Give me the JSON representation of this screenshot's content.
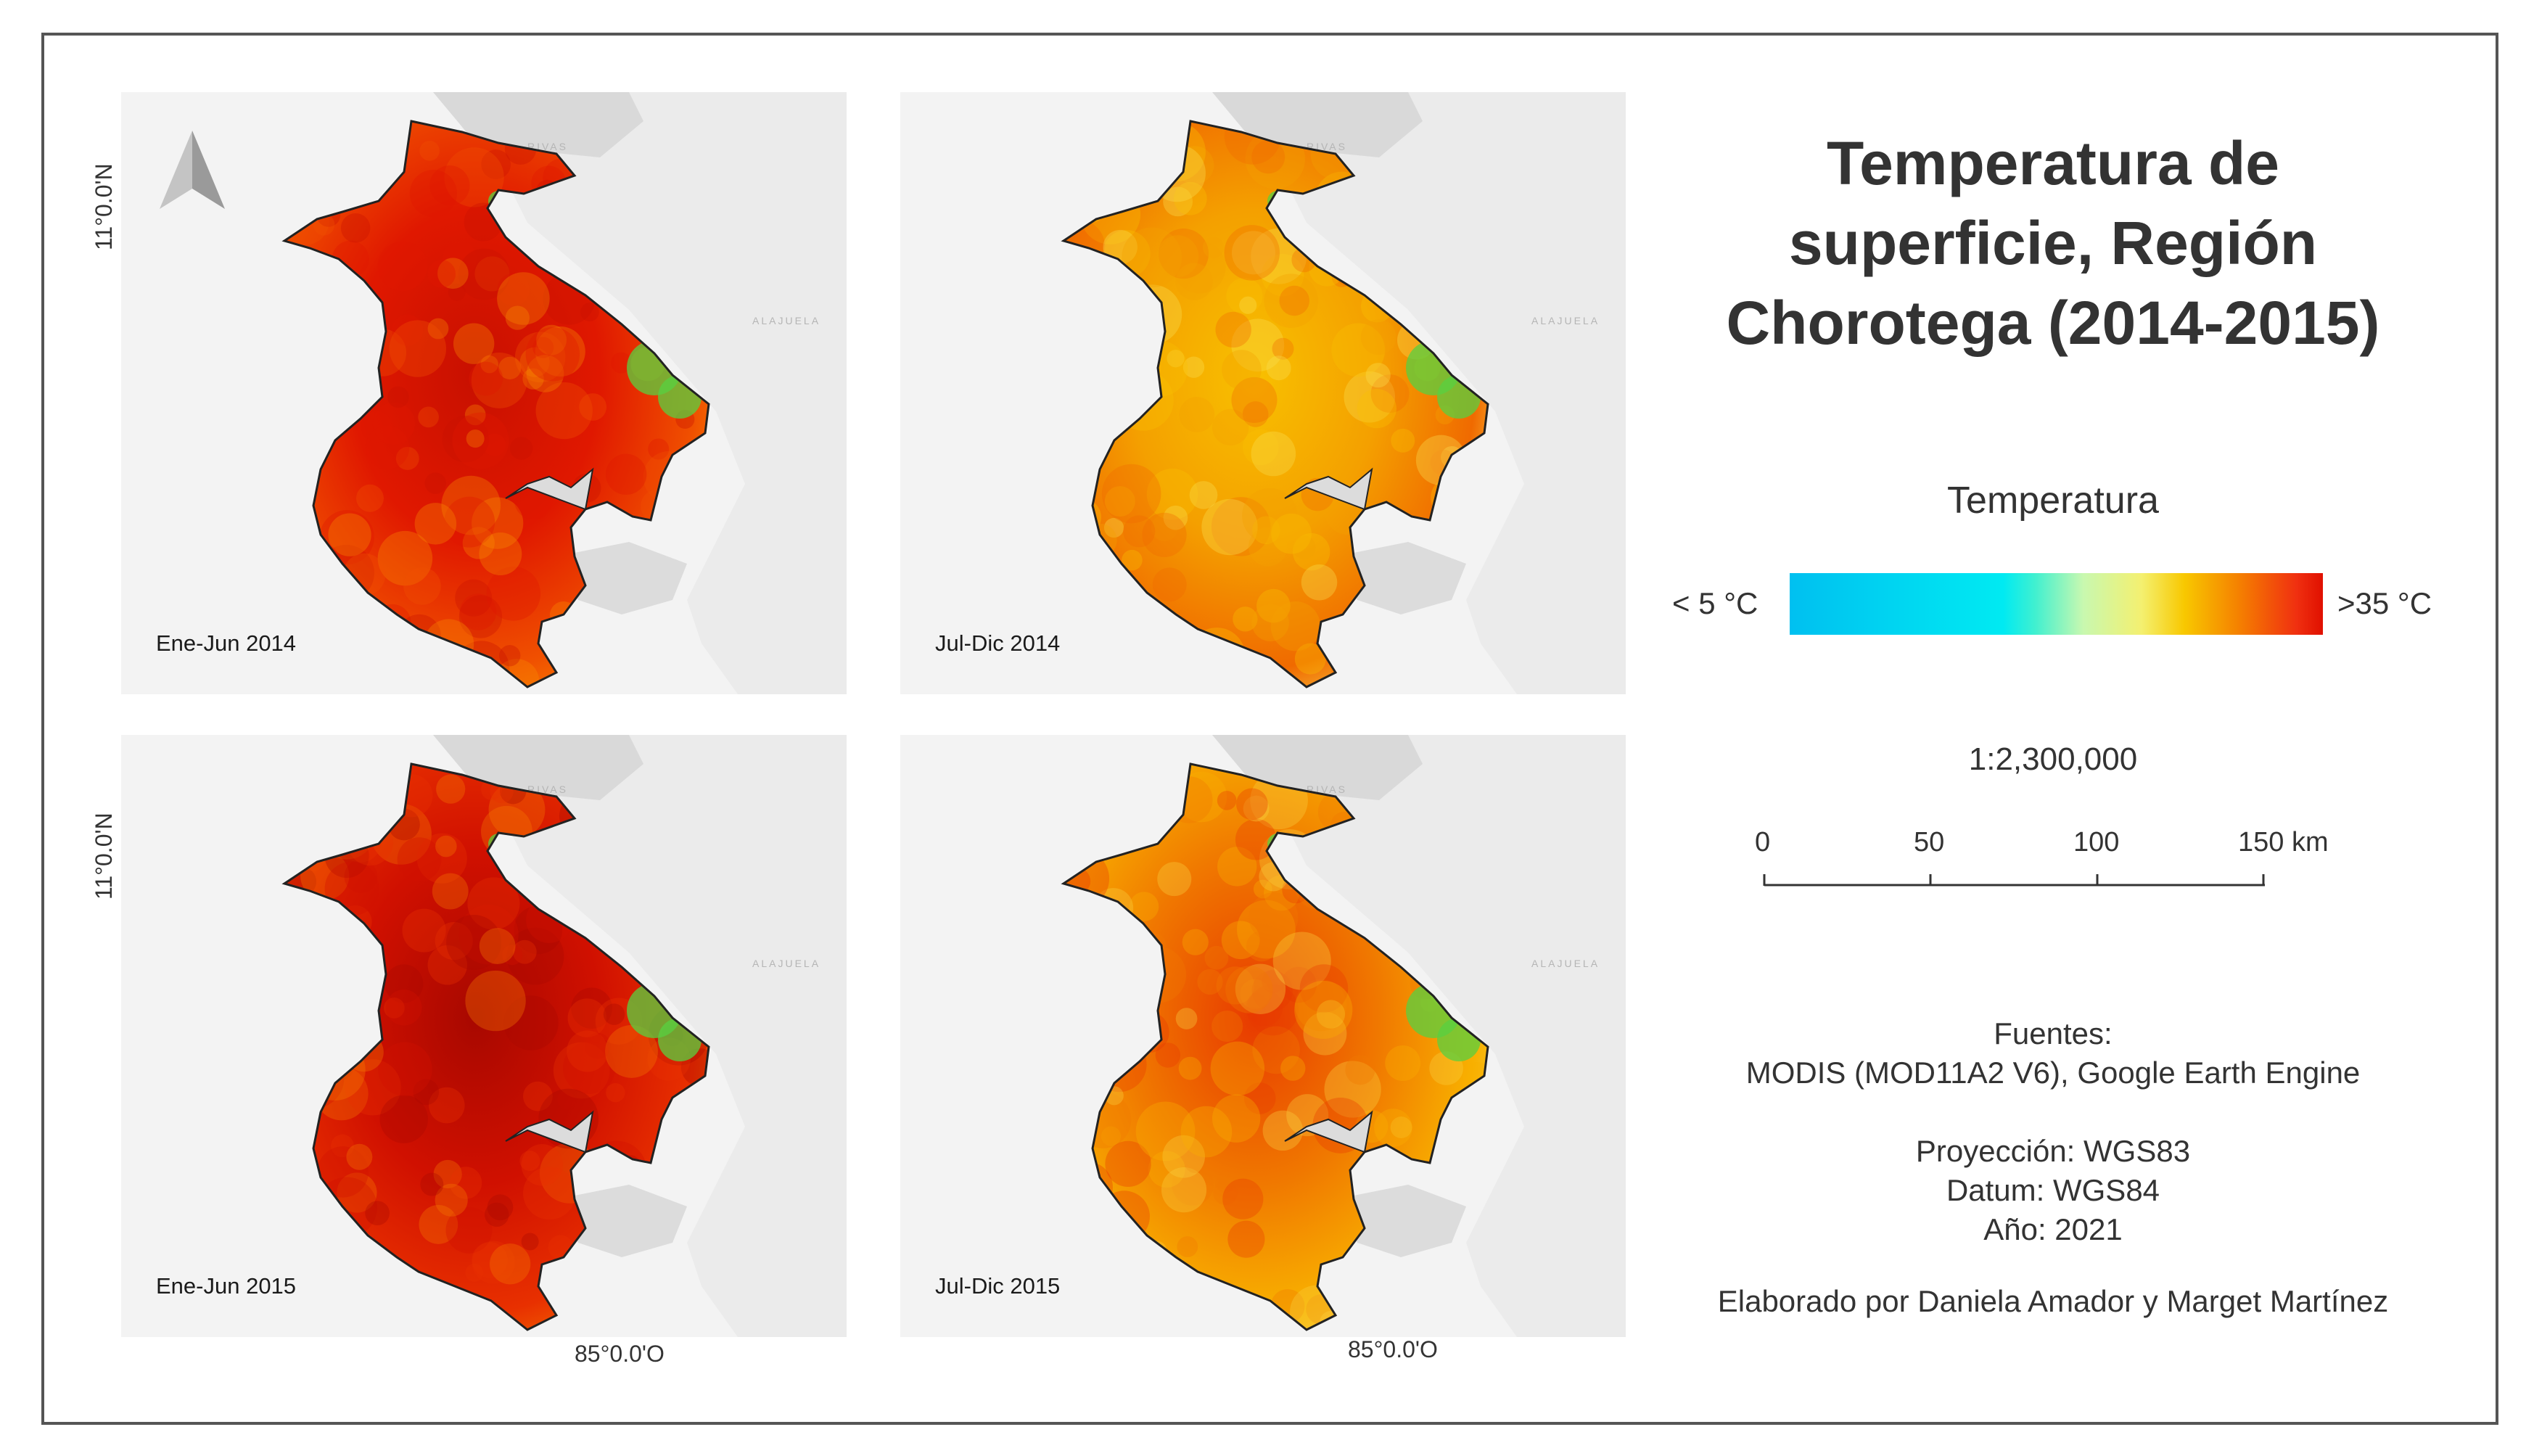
{
  "title": "Temperatura de superficie, Región Chorotega (2014-2015)",
  "title_lines": [
    "Temperatura de",
    "superficie, Región",
    "Chorotega (2014-2015)"
  ],
  "panels": [
    {
      "label": "Ene-Jun 2014",
      "palette": "hot"
    },
    {
      "label": "Jul-Dic 2014",
      "palette": "warm"
    },
    {
      "label": "Ene-Jun 2015",
      "palette": "hottest"
    },
    {
      "label": "Jul-Dic 2015",
      "palette": "warm-mid"
    }
  ],
  "basemap_labels": {
    "nicaragua": "RIVAS",
    "alajuela": "ALAJUELA"
  },
  "coordinates": {
    "latitude": "11°0.0'N",
    "longitude": "85°0.0'O"
  },
  "legend": {
    "title": "Temperatura",
    "min_label": "< 5 °C",
    "max_label": ">35 °C",
    "colors": [
      "#00c0f0",
      "#00eaf2",
      "#c8f8b0",
      "#f4f070",
      "#f8c800",
      "#f58200",
      "#e01000"
    ]
  },
  "scale": {
    "ratio": "1:2,300,000",
    "ticks": [
      "0",
      "50",
      "100",
      "150 km"
    ]
  },
  "sources": {
    "heading": "Fuentes:",
    "data": "MODIS (MOD11A2 V6), Google Earth Engine",
    "projection": "Proyección: WGS83",
    "datum": "Datum: WGS84",
    "year": "Año: 2021"
  },
  "credit": "Elaborado por Daniela Amador y Marget Martínez",
  "colors": {
    "hot": [
      "#e01800",
      "#c81000",
      "#f05000",
      "#f88a00"
    ],
    "warm": [
      "#f4a000",
      "#f8c000",
      "#f06a00",
      "#fae050"
    ],
    "hottest": [
      "#d01000",
      "#a80800",
      "#e83000",
      "#f57800"
    ],
    "warm-mid": [
      "#f07800",
      "#e83a00",
      "#f8b000",
      "#fad040"
    ],
    "green": "#58d040"
  }
}
